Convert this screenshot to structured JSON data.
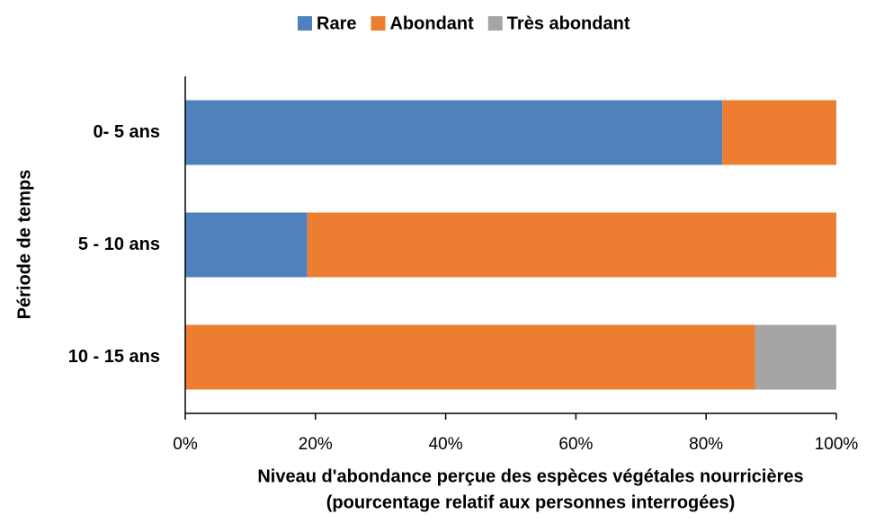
{
  "chart_data": {
    "type": "stacked-barh",
    "categories": [
      "0- 5 ans",
      "5 - 10 ans",
      "10 - 15 ans"
    ],
    "series": [
      {
        "name": "Rare",
        "color": "#4f81bd",
        "values": [
          82.5,
          18.75,
          0
        ]
      },
      {
        "name": "Abondant",
        "color": "#ed7d31",
        "values": [
          17.5,
          81.25,
          87.5
        ]
      },
      {
        "name": "Très abondant",
        "color": "#a5a5a5",
        "values": [
          0,
          0,
          12.5
        ]
      }
    ],
    "xlim": [
      0,
      100
    ],
    "xticks": [
      {
        "value": 0,
        "label": "0%"
      },
      {
        "value": 20,
        "label": "20%"
      },
      {
        "value": 40,
        "label": "40%"
      },
      {
        "value": 60,
        "label": "60%"
      },
      {
        "value": 80,
        "label": "80%"
      },
      {
        "value": 100,
        "label": "100%"
      }
    ],
    "x_label": [
      "Niveau d'abondance perçue des espèces végétales nourricières",
      "(pourcentage relatif aux personnes interrogées)"
    ],
    "y_label": "Période de temps",
    "legend": "top"
  }
}
